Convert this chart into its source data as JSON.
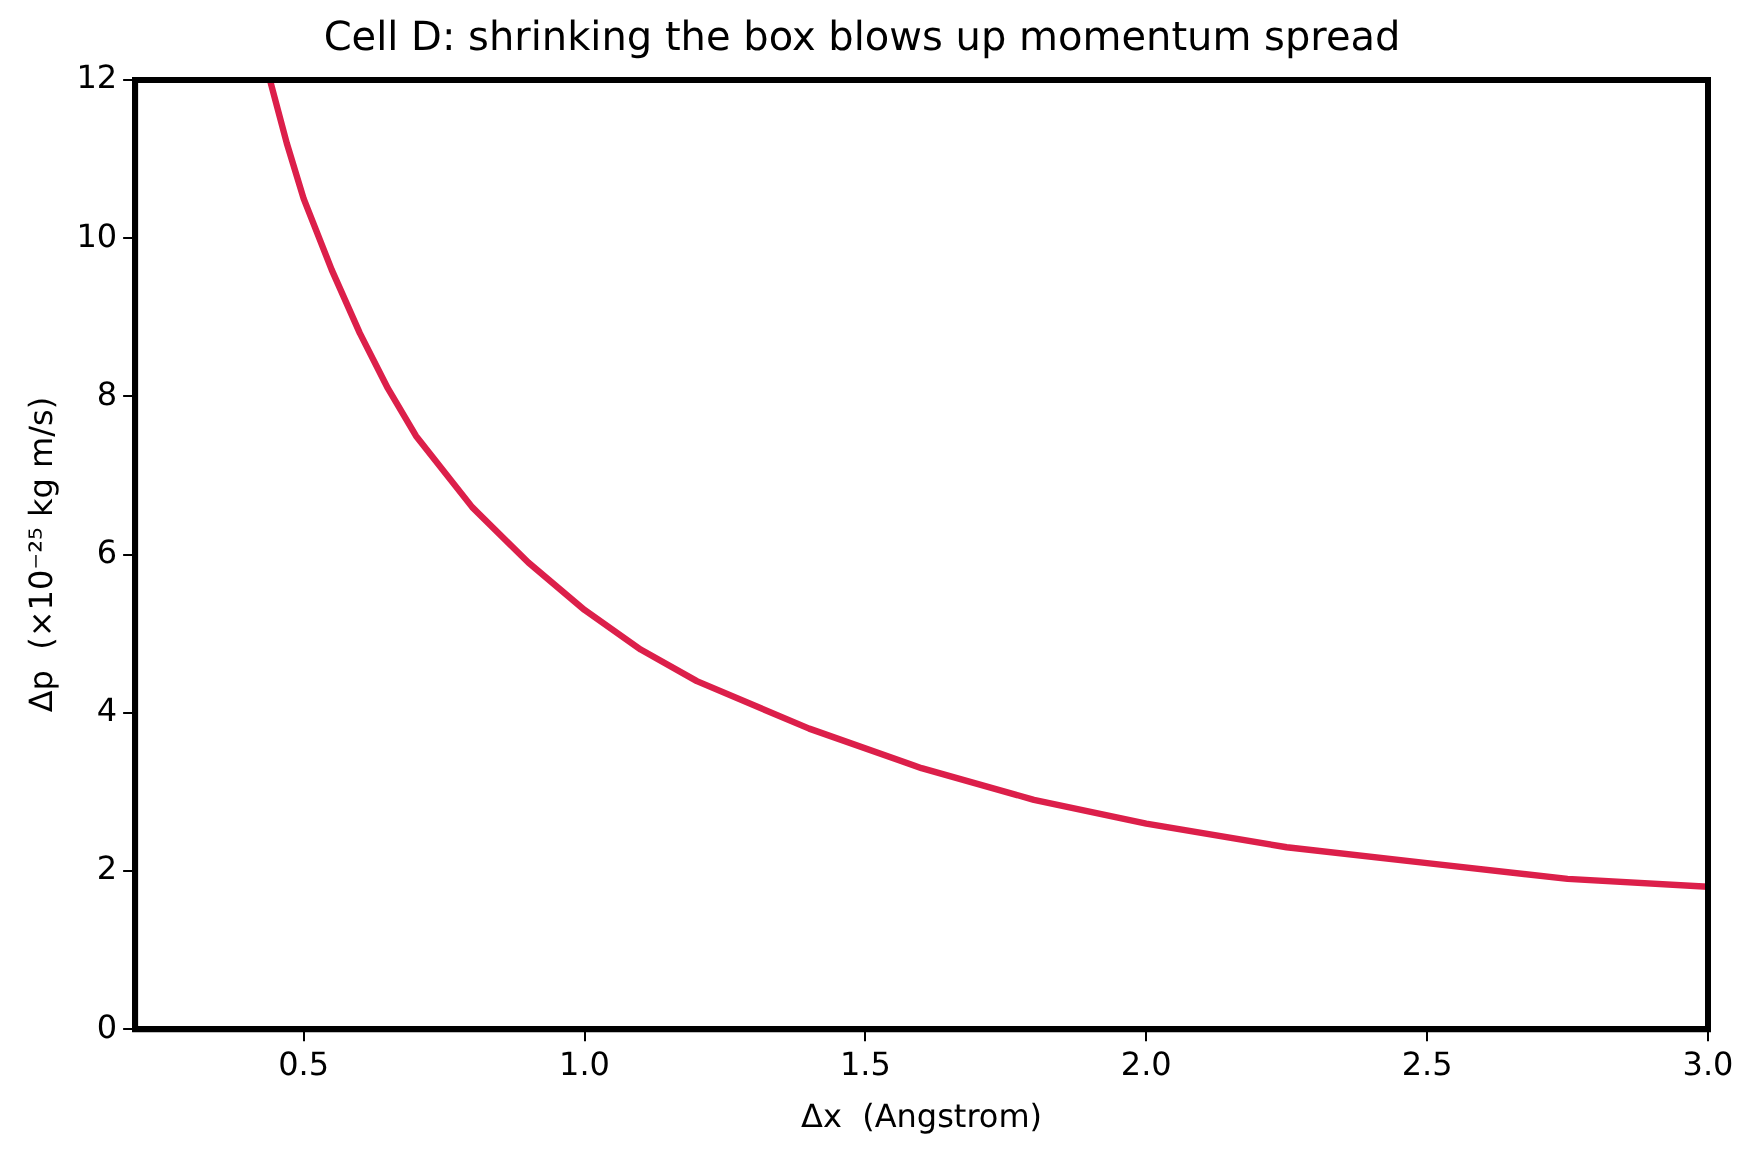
{
  "chart_data": {
    "type": "line",
    "title": "Cell D: shrinking the box blows up momentum spread",
    "xlabel": "Δx  (Angstrom)",
    "ylabel": "Δp  (×10⁻²⁵ kg m/s)",
    "series": [
      {
        "color": "#dc1f4a",
        "x": [
          0.44,
          0.47,
          0.5,
          0.55,
          0.6,
          0.65,
          0.7,
          0.8,
          0.9,
          1.0,
          1.1,
          1.2,
          1.4,
          1.6,
          1.8,
          2.0,
          2.25,
          2.5,
          2.75,
          3.0
        ],
        "values": [
          12.0,
          11.2,
          10.5,
          9.6,
          8.8,
          8.1,
          7.5,
          6.6,
          5.9,
          5.3,
          4.8,
          4.4,
          3.8,
          3.3,
          2.9,
          2.6,
          2.3,
          2.1,
          1.9,
          1.8
        ]
      }
    ],
    "xlim": [
      0.2,
      3.0
    ],
    "xticks": [
      0.5,
      {
        "value": 1,
        "label": "1.0"
      },
      1.5,
      {
        "value": 2,
        "label": "2.0"
      },
      2.5,
      {
        "value": 3,
        "label": "3.0"
      }
    ],
    "ylim": [
      0,
      12
    ],
    "yticks": [
      0,
      2,
      4,
      6,
      8,
      10,
      12
    ],
    "grid": false,
    "legend": false,
    "marker": "none",
    "line_style": "solid"
  }
}
